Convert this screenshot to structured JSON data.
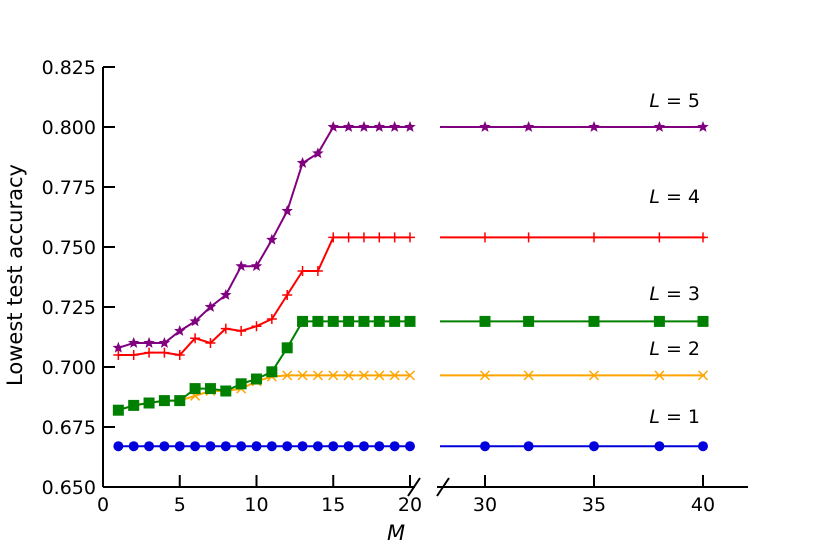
{
  "chart_data": {
    "type": "line",
    "xlabel": "M",
    "ylabel": "Lowest test accuracy",
    "ylim": [
      0.65,
      0.825
    ],
    "yticks": [
      "0.650",
      "0.675",
      "0.700",
      "0.725",
      "0.750",
      "0.775",
      "0.800",
      "0.825"
    ],
    "x_broken_axis": true,
    "x_segments": [
      {
        "range": [
          0,
          20
        ],
        "ticks": [
          "0",
          "5",
          "10",
          "15",
          "20"
        ]
      },
      {
        "range": [
          27,
          42
        ],
        "ticks": [
          "30",
          "35",
          "40"
        ]
      }
    ],
    "grid": false,
    "series": [
      {
        "name": "L = 1",
        "label_italic": "L",
        "label_rest": " = 1",
        "color": "#0000dd",
        "marker": "circle",
        "x": [
          1,
          2,
          3,
          4,
          5,
          6,
          7,
          8,
          9,
          10,
          11,
          12,
          13,
          14,
          15,
          16,
          17,
          18,
          19,
          20,
          30,
          32,
          35,
          38,
          40
        ],
        "y": [
          0.667,
          0.667,
          0.667,
          0.667,
          0.667,
          0.667,
          0.667,
          0.667,
          0.667,
          0.667,
          0.667,
          0.667,
          0.667,
          0.667,
          0.667,
          0.667,
          0.667,
          0.667,
          0.667,
          0.667,
          0.667,
          0.667,
          0.667,
          0.667,
          0.667
        ]
      },
      {
        "name": "L = 2",
        "label_italic": "L",
        "label_rest": " = 2",
        "color": "#ffa500",
        "marker": "x",
        "x": [
          1,
          2,
          3,
          4,
          5,
          6,
          7,
          8,
          9,
          10,
          11,
          12,
          13,
          14,
          15,
          16,
          17,
          18,
          19,
          20,
          30,
          32,
          35,
          38,
          40
        ],
        "y": [
          0.682,
          0.684,
          0.685,
          0.686,
          0.686,
          0.688,
          0.69,
          0.69,
          0.691,
          0.694,
          0.696,
          0.6965,
          0.6965,
          0.6965,
          0.6965,
          0.6965,
          0.6965,
          0.6965,
          0.6965,
          0.6965,
          0.6965,
          0.6965,
          0.6965,
          0.6965,
          0.6965
        ]
      },
      {
        "name": "L = 3",
        "label_italic": "L",
        "label_rest": " = 3",
        "color": "#008000",
        "marker": "square",
        "x": [
          1,
          2,
          3,
          4,
          5,
          6,
          7,
          8,
          9,
          10,
          11,
          12,
          13,
          14,
          15,
          16,
          17,
          18,
          19,
          20,
          30,
          32,
          35,
          38,
          40
        ],
        "y": [
          0.682,
          0.684,
          0.685,
          0.686,
          0.686,
          0.691,
          0.691,
          0.69,
          0.693,
          0.695,
          0.698,
          0.708,
          0.719,
          0.719,
          0.719,
          0.719,
          0.719,
          0.719,
          0.719,
          0.719,
          0.719,
          0.719,
          0.719,
          0.719,
          0.719
        ]
      },
      {
        "name": "L = 4",
        "label_italic": "L",
        "label_rest": " = 4",
        "color": "#ff0000",
        "marker": "plus",
        "x": [
          1,
          2,
          3,
          4,
          5,
          6,
          7,
          8,
          9,
          10,
          11,
          12,
          13,
          14,
          15,
          16,
          17,
          18,
          19,
          20,
          30,
          32,
          35,
          38,
          40
        ],
        "y": [
          0.705,
          0.705,
          0.706,
          0.706,
          0.705,
          0.712,
          0.71,
          0.716,
          0.715,
          0.717,
          0.72,
          0.73,
          0.74,
          0.74,
          0.754,
          0.754,
          0.754,
          0.754,
          0.754,
          0.754,
          0.754,
          0.754,
          0.754,
          0.754,
          0.754
        ]
      },
      {
        "name": "L = 5",
        "label_italic": "L",
        "label_rest": " = 5",
        "color": "#800080",
        "marker": "star",
        "x": [
          1,
          2,
          3,
          4,
          5,
          6,
          7,
          8,
          9,
          10,
          11,
          12,
          13,
          14,
          15,
          16,
          17,
          18,
          19,
          20,
          30,
          32,
          35,
          38,
          40
        ],
        "y": [
          0.708,
          0.71,
          0.71,
          0.71,
          0.715,
          0.719,
          0.725,
          0.73,
          0.742,
          0.742,
          0.753,
          0.765,
          0.785,
          0.789,
          0.8,
          0.8,
          0.8,
          0.8,
          0.8,
          0.8,
          0.8,
          0.8,
          0.8,
          0.8,
          0.8
        ]
      }
    ]
  }
}
